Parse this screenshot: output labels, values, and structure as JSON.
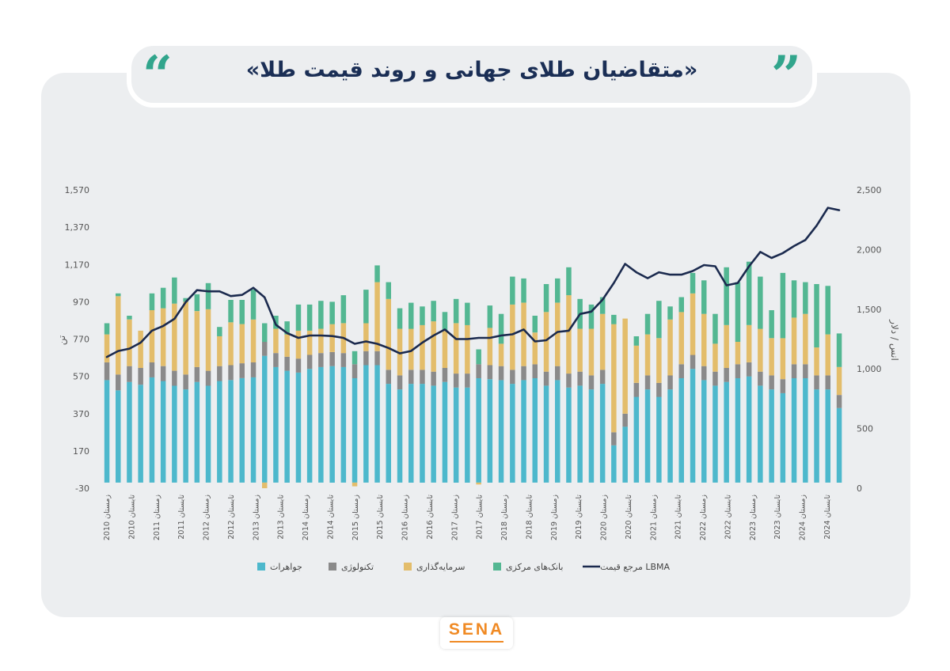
{
  "title": "«متقاضیان طلای جهانی و روند قیمت طلا»",
  "quote_left": "“",
  "quote_right": "”",
  "logo": "SENA",
  "colors": {
    "jewelry": "#4db8cc",
    "technology": "#8a8a8a",
    "investment": "#e3bd6b",
    "central_banks": "#53b792",
    "lbma": "#1b2a4e",
    "background": "#eceef0"
  },
  "chart_data": {
    "type": "bar",
    "stacked": true,
    "ylabel_left": "تن",
    "ylabel_right": "انس / دلار",
    "ylim_left": [
      -30,
      1570
    ],
    "ylim_right": [
      0,
      2500
    ],
    "yticks_left": [
      "1,570",
      "1,370",
      "1,170",
      "970",
      "770",
      "570",
      "370",
      "170",
      "-30"
    ],
    "yticks_right": [
      "2,500",
      "2,000",
      "1,500",
      "1,000",
      "500",
      "0"
    ],
    "xticks": [
      "زمستان 2010",
      "تابستان 2010",
      "زمستان 2011",
      "تابستان 2011",
      "زمستان 2012",
      "تابستان 2012",
      "زمستان 2013",
      "تابستان 2013",
      "زمستان 2014",
      "تابستان 2014",
      "زمستان 2015",
      "تابستان 2015",
      "زمستان 2016",
      "تابستان 2016",
      "زمستان 2017",
      "تابستان 2017",
      "زمستان 2018",
      "تابستان 2018",
      "زمستان 2019",
      "تابستان 2019",
      "زمستان 2020",
      "تابستان 2020",
      "زمستان 2021",
      "تابستان 2021",
      "زمستان 2022",
      "تابستان 2022",
      "زمستان 2023",
      "تابستان 2023",
      "زمستان 2024",
      "تابستان 2024"
    ],
    "legend": [
      "جواهرات",
      "تکنولوژی",
      "سرمایه‌گذاری",
      "بانک‌های مرکزی",
      "مرجع قیمت LBMA"
    ],
    "legend_position": "bottom",
    "series": [
      {
        "name": "جواهرات",
        "values": [
          550,
          495,
          540,
          525,
          565,
          545,
          520,
          500,
          540,
          520,
          545,
          550,
          560,
          565,
          680,
          620,
          600,
          590,
          610,
          620,
          625,
          620,
          560,
          630,
          630,
          530,
          500,
          530,
          530,
          520,
          540,
          510,
          510,
          560,
          555,
          550,
          530,
          550,
          560,
          520,
          550,
          510,
          520,
          500,
          530,
          200,
          300,
          460,
          500,
          460,
          500,
          560,
          610,
          550,
          520,
          540,
          560,
          570,
          520,
          500,
          480,
          560,
          560,
          500,
          500,
          400
        ],
        "cum_note": "jewelry tonnes"
      },
      {
        "name": "تکنولوژی",
        "values": [
          95,
          85,
          85,
          90,
          80,
          80,
          80,
          80,
          80,
          80,
          80,
          80,
          80,
          80,
          75,
          75,
          75,
          75,
          75,
          75,
          75,
          75,
          75,
          75,
          75,
          75,
          75,
          75,
          75,
          75,
          75,
          75,
          75,
          75,
          75,
          75,
          75,
          75,
          75,
          75,
          75,
          75,
          75,
          75,
          75,
          70,
          70,
          75,
          75,
          75,
          75,
          75,
          75,
          75,
          75,
          75,
          75,
          75,
          75,
          75,
          75,
          75,
          75,
          75,
          75,
          70
        ]
      },
      {
        "name": "سرمایه‌گذاری",
        "values": [
          150,
          420,
          250,
          200,
          280,
          310,
          360,
          390,
          300,
          330,
          160,
          230,
          210,
          230,
          -30,
          130,
          120,
          150,
          130,
          130,
          150,
          160,
          -20,
          150,
          370,
          380,
          250,
          220,
          240,
          270,
          200,
          270,
          260,
          -10,
          200,
          120,
          350,
          340,
          170,
          320,
          340,
          420,
          230,
          250,
          300,
          580,
          510,
          200,
          220,
          240,
          300,
          280,
          330,
          280,
          150,
          230,
          120,
          200,
          230,
          200,
          220,
          250,
          270,
          150,
          220,
          150
        ]
      },
      {
        "name": "بانک‌های مرکزی",
        "values": [
          60,
          15,
          20,
          0,
          90,
          110,
          140,
          20,
          90,
          140,
          50,
          120,
          130,
          160,
          100,
          70,
          70,
          140,
          140,
          150,
          120,
          150,
          70,
          180,
          90,
          90,
          110,
          140,
          100,
          110,
          100,
          130,
          120,
          80,
          120,
          160,
          150,
          130,
          90,
          150,
          130,
          150,
          160,
          130,
          90,
          50,
          0,
          50,
          110,
          200,
          70,
          80,
          110,
          180,
          160,
          310,
          320,
          340,
          280,
          150,
          350,
          200,
          170,
          340,
          260,
          180
        ]
      },
      {
        "name": "مرجع قیمت LBMA",
        "values": [
          1100,
          1150,
          1170,
          1220,
          1320,
          1360,
          1420,
          1560,
          1660,
          1650,
          1650,
          1610,
          1620,
          1680,
          1600,
          1370,
          1300,
          1260,
          1280,
          1280,
          1275,
          1260,
          1210,
          1230,
          1210,
          1175,
          1130,
          1150,
          1220,
          1280,
          1330,
          1250,
          1250,
          1260,
          1260,
          1280,
          1290,
          1330,
          1230,
          1240,
          1310,
          1320,
          1460,
          1480,
          1580,
          1720,
          1880,
          1810,
          1760,
          1810,
          1790,
          1790,
          1820,
          1870,
          1860,
          1700,
          1720,
          1860,
          1980,
          1930,
          1970,
          2030,
          2080,
          2200,
          2350,
          2330
        ]
      }
    ]
  }
}
